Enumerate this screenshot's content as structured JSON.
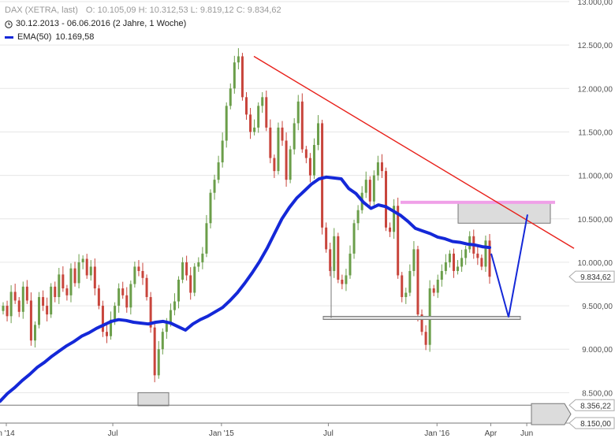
{
  "legend": {
    "title": "DAX (XETRA, last)",
    "ohlc": "O: 10.105,09  H: 10.312,53  L: 9.819,12  C: 9.834,62",
    "range": "30.12.2013 - 06.06.2016 (2 Jahre, 1 Woche)",
    "ema_label": "EMA(50)",
    "ema_value": "10.169,58"
  },
  "chart_data": {
    "type": "candlestick",
    "instrument": "DAX (XETRA, last)",
    "ylim": [
      8150,
      13000
    ],
    "y_ticks": [
      8150,
      8500,
      9000,
      9500,
      10000,
      10500,
      11000,
      11500,
      12000,
      12500,
      13000
    ],
    "y_tick_labels": [
      "8.150,00",
      "8.500,00",
      "9.000,00",
      "9.500,00",
      "10.000,00",
      "10.500,00",
      "11.000,00",
      "11.500,00",
      "12.000,00",
      "12.500,00",
      "13.000,00"
    ],
    "x_labels": [
      {
        "label": "n '14",
        "date": "2014-01-01"
      },
      {
        "label": "Jul",
        "date": "2014-07-01"
      },
      {
        "label": "Jan '15",
        "date": "2015-01-01"
      },
      {
        "label": "Jul",
        "date": "2015-07-01"
      },
      {
        "label": "Jan '16",
        "date": "2016-01-01"
      },
      {
        "label": "Apr",
        "date": "2016-04-01"
      },
      {
        "label": "Jun",
        "date": "2016-06-01"
      }
    ],
    "last_price": {
      "value": 9834.62,
      "label": "9.834,62"
    },
    "price_markers": [
      {
        "value": 8356.22,
        "label": "8.356,22"
      },
      {
        "value": 8150.0,
        "label": "8.150,00"
      }
    ],
    "ohlc_last": {
      "open": 10105.09,
      "high": 10312.53,
      "low": 9819.12,
      "close": 9834.62
    },
    "candles_close": [
      9500,
      9380,
      9660,
      9560,
      9430,
      9720,
      9560,
      9100,
      9280,
      9600,
      9500,
      9400,
      9720,
      9600,
      9860,
      9700,
      9620,
      9930,
      9760,
      10000,
      10040,
      9850,
      9950,
      9700,
      9500,
      9200,
      9150,
      9340,
      9500,
      9700,
      9620,
      9480,
      9750,
      9950,
      9900,
      9820,
      9600,
      9250,
      8700,
      9000,
      9200,
      9300,
      9450,
      9550,
      9800,
      10000,
      9850,
      9650,
      9950,
      10000,
      10100,
      10450,
      10800,
      10950,
      11150,
      11400,
      11800,
      12000,
      12300,
      12370,
      11900,
      11700,
      11500,
      11550,
      11800,
      11900,
      11550,
      11200,
      11050,
      11550,
      11400,
      10950,
      11300,
      11600,
      11850,
      11300,
      11200,
      11000,
      11350,
      11600,
      10400,
      10150,
      9900,
      10300,
      9800,
      9750,
      9850,
      10100,
      10450,
      10600,
      10800,
      10950,
      10700,
      11000,
      11150,
      11050,
      10400,
      10350,
      10650,
      9850,
      9600,
      9650,
      9900,
      10150,
      9400,
      9200,
      9050,
      9700,
      9650,
      9800,
      9900,
      10000,
      10100,
      9900,
      9950,
      10050,
      10150,
      10300,
      10100,
      10050,
      9950,
      10250,
      9834
    ]
  },
  "ema_points": [
    8400,
    8490,
    8560,
    8640,
    8710,
    8790,
    8850,
    8920,
    8980,
    9040,
    9090,
    9150,
    9190,
    9240,
    9280,
    9320,
    9340,
    9330,
    9310,
    9300,
    9290,
    9310,
    9320,
    9300,
    9260,
    9220,
    9290,
    9340,
    9380,
    9430,
    9480,
    9560,
    9650,
    9760,
    9880,
    10010,
    10160,
    10330,
    10500,
    10630,
    10740,
    10820,
    10900,
    10960,
    10980,
    10970,
    10960,
    10850,
    10790,
    10690,
    10620,
    10660,
    10640,
    10590,
    10540,
    10470,
    10390,
    10360,
    10330,
    10290,
    10270,
    10240,
    10230,
    10210,
    10200,
    10180,
    10170
  ],
  "annotations": {
    "trendline": {
      "from_value": 12370,
      "to_value": 10160
    },
    "support_zone": {
      "value": 9360
    },
    "resistance_zone": {
      "from": 10450,
      "to": 10700
    },
    "magenta_level": {
      "value": 10690
    },
    "projection": {
      "points": [
        10100,
        9370,
        10550
      ]
    },
    "low_box": {
      "from": 8350,
      "to": 8500
    }
  },
  "colors": {
    "up": "#6b9e4a",
    "down": "#c8453c",
    "ema": "#1428d8",
    "trendline": "#e8201a",
    "projection": "#1428d8",
    "magenta": "#f0a0e8",
    "zone_fill": "#dcdcdc",
    "grid": "#e6e6e6"
  }
}
